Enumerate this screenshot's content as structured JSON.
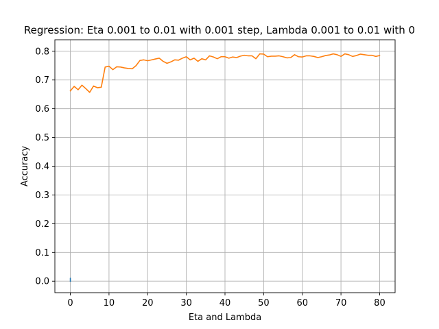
{
  "chart_data": {
    "type": "line",
    "title": "Regression: Eta 0.001 to 0.01 with 0.001 step, Lambda 0.001 to 0.01 with 0",
    "xlabel": "Eta and Lambda",
    "ylabel": "Accuracy",
    "xlim": [
      -4,
      84
    ],
    "ylim": [
      -0.04,
      0.84
    ],
    "xticks": [
      0,
      10,
      20,
      30,
      40,
      50,
      60,
      70,
      80
    ],
    "xtick_labels": [
      "0",
      "10",
      "20",
      "30",
      "40",
      "50",
      "60",
      "70",
      "80"
    ],
    "yticks": [
      0.0,
      0.1,
      0.2,
      0.3,
      0.4,
      0.5,
      0.6,
      0.7,
      0.8
    ],
    "ytick_labels": [
      "0.0",
      "0.1",
      "0.2",
      "0.3",
      "0.4",
      "0.5",
      "0.6",
      "0.7",
      "0.8"
    ],
    "grid": true,
    "series": [
      {
        "color": "#1f77b4",
        "x": [
          0,
          0
        ],
        "y": [
          0.0,
          0.01
        ]
      },
      {
        "color": "#ff7f0e",
        "x": [
          0,
          1,
          2,
          3,
          4,
          5,
          6,
          7,
          8,
          9,
          10,
          11,
          12,
          13,
          14,
          15,
          16,
          17,
          18,
          19,
          20,
          21,
          22,
          23,
          24,
          25,
          26,
          27,
          28,
          29,
          30,
          31,
          32,
          33,
          34,
          35,
          36,
          37,
          38,
          39,
          40,
          41,
          42,
          43,
          44,
          45,
          46,
          47,
          48,
          49,
          50,
          51,
          52,
          53,
          54,
          55,
          56,
          57,
          58,
          59,
          60,
          61,
          62,
          63,
          64,
          65,
          66,
          67,
          68,
          69,
          70,
          71,
          72,
          73,
          74,
          75,
          76,
          77,
          78,
          79,
          80
        ],
        "y": [
          0.662,
          0.678,
          0.666,
          0.682,
          0.67,
          0.657,
          0.679,
          0.673,
          0.675,
          0.745,
          0.748,
          0.736,
          0.746,
          0.745,
          0.742,
          0.74,
          0.739,
          0.75,
          0.768,
          0.77,
          0.767,
          0.77,
          0.773,
          0.776,
          0.765,
          0.758,
          0.763,
          0.77,
          0.769,
          0.776,
          0.781,
          0.77,
          0.776,
          0.765,
          0.774,
          0.77,
          0.784,
          0.78,
          0.774,
          0.781,
          0.781,
          0.776,
          0.78,
          0.778,
          0.783,
          0.786,
          0.784,
          0.784,
          0.774,
          0.791,
          0.79,
          0.781,
          0.783,
          0.783,
          0.784,
          0.781,
          0.777,
          0.778,
          0.788,
          0.781,
          0.78,
          0.784,
          0.784,
          0.782,
          0.778,
          0.781,
          0.785,
          0.787,
          0.791,
          0.788,
          0.782,
          0.791,
          0.788,
          0.782,
          0.785,
          0.79,
          0.788,
          0.786,
          0.786,
          0.782,
          0.785
        ]
      }
    ]
  }
}
